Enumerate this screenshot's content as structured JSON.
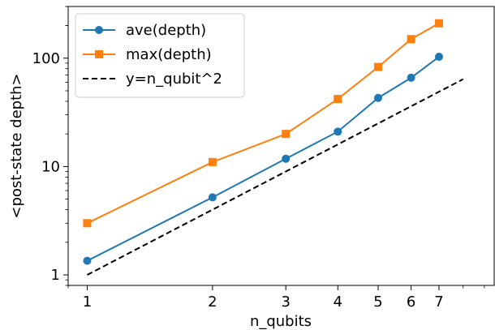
{
  "chart_data": {
    "type": "line",
    "xlabel": "n_qubits",
    "ylabel": "<post-state depth>",
    "x_scale": "log",
    "y_scale": "log",
    "xlim": [
      0.9,
      9.5
    ],
    "ylim": [
      0.8,
      300
    ],
    "x_ticks": [
      {
        "value": 1,
        "label": "1"
      },
      {
        "value": 2,
        "label": "2"
      },
      {
        "value": 3,
        "label": "3"
      },
      {
        "value": 4,
        "label": "4"
      },
      {
        "value": 5,
        "label": "5"
      },
      {
        "value": 6,
        "label": "6"
      },
      {
        "value": 7,
        "label": "7"
      }
    ],
    "y_ticks": [
      {
        "value": 1,
        "label": "1"
      },
      {
        "value": 10,
        "label": "10"
      },
      {
        "value": 100,
        "label": "100"
      }
    ],
    "grid": false,
    "legend_position": "upper-left",
    "x": [
      1,
      2,
      3,
      4,
      5,
      6,
      7
    ],
    "series": [
      {
        "name": "ave(depth)",
        "color": "#1f77b4",
        "marker": "circle",
        "line": "solid",
        "values": [
          1.35,
          5.2,
          11.8,
          21,
          43,
          66,
          103
        ]
      },
      {
        "name": "max(depth)",
        "color": "#ff7f0e",
        "marker": "square",
        "line": "solid",
        "values": [
          3,
          11,
          20,
          42,
          83,
          150,
          210
        ]
      }
    ],
    "reference": {
      "name": "y=n_qubit^2",
      "color": "#000000",
      "line": "dashed",
      "x": [
        1,
        8
      ],
      "values": [
        1,
        64
      ]
    }
  }
}
